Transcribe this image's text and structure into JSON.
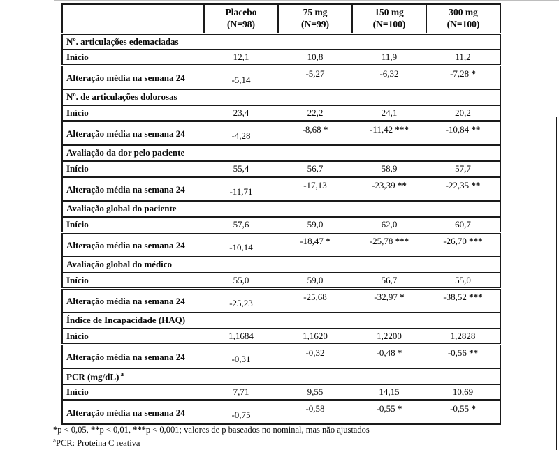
{
  "table": {
    "columns": [
      {
        "label": "Placebo",
        "n": "(N=98)"
      },
      {
        "label": "75 mg",
        "n": "(N=99)"
      },
      {
        "label": "150 mg",
        "n": "(N=100)"
      },
      {
        "label": "300 mg",
        "n": "(N=100)"
      }
    ],
    "row_labels": {
      "baseline": "Início",
      "change": "Alteração média na semana 24"
    },
    "sections": [
      {
        "title": "Nº. articulações edemaciadas",
        "baseline": [
          "12,1",
          "10,8",
          "11,9",
          "11,2"
        ],
        "change": [
          {
            "value": "-5,14",
            "sig": ""
          },
          {
            "value": "-5,27",
            "sig": ""
          },
          {
            "value": "-6,32",
            "sig": ""
          },
          {
            "value": "-7,28",
            "sig": "*"
          }
        ]
      },
      {
        "title": "Nº. de articulações dolorosas",
        "baseline": [
          "23,4",
          "22,2",
          "24,1",
          "20,2"
        ],
        "change": [
          {
            "value": "-4,28",
            "sig": ""
          },
          {
            "value": "-8,68",
            "sig": "*"
          },
          {
            "value": "-11,42",
            "sig": "***"
          },
          {
            "value": "-10,84",
            "sig": "**"
          }
        ]
      },
      {
        "title": "Avaliação da dor pelo paciente",
        "baseline": [
          "55,4",
          "56,7",
          "58,9",
          "57,7"
        ],
        "change": [
          {
            "value": "-11,71",
            "sig": ""
          },
          {
            "value": "-17,13",
            "sig": ""
          },
          {
            "value": "-23,39",
            "sig": "**"
          },
          {
            "value": "-22,35",
            "sig": "**"
          }
        ]
      },
      {
        "title": "Avaliação global do paciente",
        "baseline": [
          "57,6",
          "59,0",
          "62,0",
          "60,7"
        ],
        "change": [
          {
            "value": "-10,14",
            "sig": ""
          },
          {
            "value": "-18,47",
            "sig": "*"
          },
          {
            "value": "-25,78",
            "sig": "***"
          },
          {
            "value": "-26,70",
            "sig": "***"
          }
        ]
      },
      {
        "title": "Avaliação global do médico",
        "baseline": [
          "55,0",
          "59,0",
          "56,7",
          "55,0"
        ],
        "change": [
          {
            "value": "-25,23",
            "sig": ""
          },
          {
            "value": "-25,68",
            "sig": ""
          },
          {
            "value": "-32,97",
            "sig": "*"
          },
          {
            "value": "-38,52",
            "sig": "***"
          }
        ]
      },
      {
        "title": "Índice de Incapacidade (HAQ)",
        "baseline": [
          "1,1684",
          "1,1620",
          "1,2200",
          "1,2828"
        ],
        "change": [
          {
            "value": "-0,31",
            "sig": ""
          },
          {
            "value": "-0,32",
            "sig": ""
          },
          {
            "value": "-0,48",
            "sig": "*"
          },
          {
            "value": "-0,56",
            "sig": "**"
          }
        ]
      },
      {
        "title": "PCR (mg/dL)",
        "title_sup": "a",
        "baseline": [
          "7,71",
          "9,55",
          "14,15",
          "10,69"
        ],
        "change": [
          {
            "value": "-0,75",
            "sig": ""
          },
          {
            "value": "-0,58",
            "sig": ""
          },
          {
            "value": "-0,55",
            "sig": "*"
          },
          {
            "value": "-0,55",
            "sig": "*"
          }
        ]
      }
    ]
  },
  "footnotes": {
    "significance": [
      {
        "bold": true,
        "text": "*"
      },
      {
        "bold": false,
        "text": "p < 0,05, "
      },
      {
        "bold": true,
        "text": "**"
      },
      {
        "bold": false,
        "text": "p < 0,01, "
      },
      {
        "bold": true,
        "text": "***"
      },
      {
        "bold": false,
        "text": "p < 0,001; valores de p baseados no nominal, mas não ajustados"
      }
    ],
    "pcr": {
      "sup": "a",
      "text": "PCR: Proteína C reativa"
    }
  }
}
